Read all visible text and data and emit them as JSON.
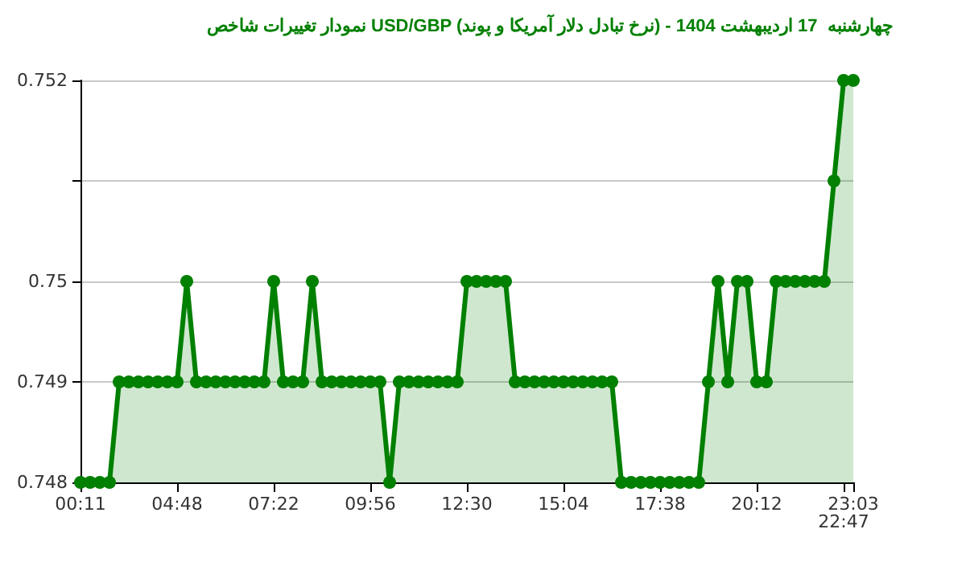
{
  "chart_data": {
    "type": "area",
    "title": "نمودار تغییرات شاخص USD/GBP (نرخ تبادل دلار آمریکا و پوند) - چهارشنبه  17 اردیبهشت 1404",
    "categories": [
      "00:11",
      null,
      null,
      null,
      null,
      null,
      null,
      null,
      null,
      null,
      "04:48",
      null,
      null,
      null,
      null,
      null,
      null,
      null,
      null,
      null,
      "07:22",
      null,
      null,
      null,
      null,
      null,
      null,
      null,
      null,
      null,
      "09:56",
      null,
      null,
      null,
      null,
      null,
      null,
      null,
      null,
      null,
      "12:30",
      null,
      null,
      null,
      null,
      null,
      null,
      null,
      null,
      null,
      "15:04",
      null,
      null,
      null,
      null,
      null,
      null,
      null,
      null,
      null,
      "17:38",
      null,
      null,
      null,
      null,
      null,
      null,
      null,
      null,
      null,
      "20:12",
      null,
      null,
      null,
      null,
      null,
      null,
      null,
      null,
      "22:47",
      "23:03"
    ],
    "series": [
      {
        "color": "#008000",
        "values": [
          0.748,
          0.748,
          0.748,
          0.748,
          0.749,
          0.749,
          0.749,
          0.749,
          0.749,
          0.749,
          0.749,
          0.75,
          0.749,
          0.749,
          0.749,
          0.749,
          0.749,
          0.749,
          0.749,
          0.749,
          0.75,
          0.749,
          0.749,
          0.749,
          0.75,
          0.749,
          0.749,
          0.749,
          0.749,
          0.749,
          0.749,
          0.749,
          0.748,
          0.749,
          0.749,
          0.749,
          0.749,
          0.749,
          0.749,
          0.749,
          0.75,
          0.75,
          0.75,
          0.75,
          0.75,
          0.749,
          0.749,
          0.749,
          0.749,
          0.749,
          0.749,
          0.749,
          0.749,
          0.749,
          0.749,
          0.749,
          0.748,
          0.748,
          0.748,
          0.748,
          0.748,
          0.748,
          0.748,
          0.748,
          0.748,
          0.749,
          0.75,
          0.749,
          0.75,
          0.75,
          0.749,
          0.749,
          0.75,
          0.75,
          0.75,
          0.75,
          0.75,
          0.75,
          0.751,
          0.752,
          0.752
        ]
      }
    ],
    "ylim": [
      0.748,
      0.752
    ],
    "yticks": [
      0.748,
      0.749,
      0.75,
      {
        "value": 0.751,
        "label": null
      },
      0.752
    ],
    "grid": "y",
    "marker": "circle",
    "line_style": "solid"
  }
}
